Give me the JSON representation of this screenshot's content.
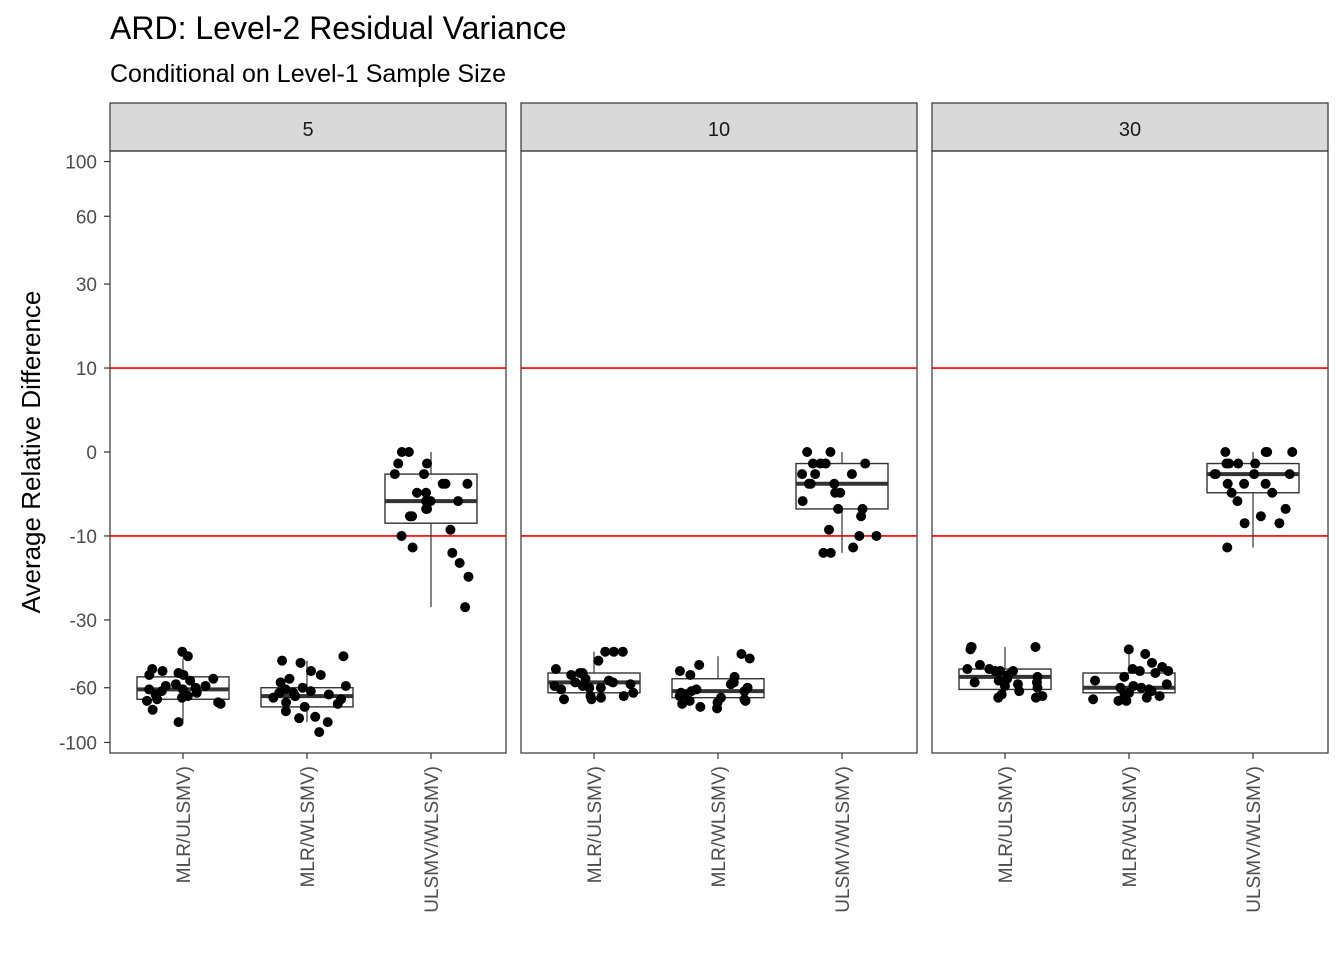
{
  "chart_data": {
    "type": "box",
    "title": "ARD: Level-2 Residual Variance",
    "subtitle": "Conditional on Level-1 Sample Size",
    "ylabel": "Average Relative Difference",
    "xlabel": "",
    "ylim": [
      -110,
      110
    ],
    "yticks": [
      100,
      60,
      30,
      10,
      0,
      -10,
      -30,
      -60,
      -100
    ],
    "reference_lines": [
      10,
      -10
    ],
    "categories": [
      "MLR/ULSMV)",
      "MLR/WLSMV)",
      "ULSMV/WLSMV)"
    ],
    "grid": false,
    "colors": {
      "reference": "#ee0000",
      "strip": "#d9d9d9",
      "points": "#000000"
    },
    "panels": [
      {
        "facet": "5",
        "boxes": [
          {
            "category": "MLR/ULSMV)",
            "q1": -67,
            "median": -61,
            "q3": -54,
            "whisker_low": -82,
            "whisker_high": -45,
            "points": [
              -42,
              -44,
              -50,
              -51,
              -52,
              -53,
              -53,
              -55,
              -56,
              -58,
              -59,
              -59,
              -60,
              -61,
              -61,
              -62,
              -63,
              -64,
              -65,
              -66,
              -67,
              -68,
              -69,
              -70,
              -74,
              -83
            ]
          },
          {
            "category": "MLR/WLSMV)",
            "q1": -72,
            "median": -65,
            "q3": -60,
            "whisker_low": -83,
            "whisker_high": -46,
            "points": [
              -44,
              -46,
              -47,
              -51,
              -53,
              -55,
              -57,
              -59,
              -60,
              -61,
              -62,
              -63,
              -63,
              -64,
              -65,
              -65,
              -66,
              -67,
              -69,
              -70,
              -72,
              -75,
              -79,
              -80,
              -83,
              -91
            ]
          },
          {
            "category": "ULSMV/WLSMV)",
            "q1": -8,
            "median": -5,
            "q3": -2,
            "whisker_low": -26,
            "whisker_high": 0,
            "points": [
              0,
              0,
              -1,
              -1,
              -2,
              -2,
              -3,
              -3,
              -3,
              -4,
              -4,
              -5,
              -5,
              -5,
              -6,
              -6,
              -7,
              -7,
              -9,
              -10,
              -12,
              -13,
              -15,
              -18,
              -26
            ]
          }
        ]
      },
      {
        "facet": "10",
        "boxes": [
          {
            "category": "MLR/ULSMV)",
            "q1": -63,
            "median": -57,
            "q3": -52,
            "whisker_low": -67,
            "whisker_high": -42,
            "points": [
              -42,
              -42,
              -42,
              -46,
              -50,
              -52,
              -52,
              -53,
              -55,
              -56,
              -57,
              -57,
              -58,
              -59,
              -59,
              -60,
              -60,
              -61,
              -63,
              -65,
              -65,
              -66,
              -67,
              -67
            ]
          },
          {
            "category": "MLR/WLSMV)",
            "q1": -66,
            "median": -62,
            "q3": -55,
            "whisker_low": -73,
            "whisker_high": -44,
            "points": [
              -43,
              -45,
              -48,
              -51,
              -53,
              -54,
              -57,
              -58,
              -60,
              -61,
              -62,
              -62,
              -63,
              -64,
              -65,
              -66,
              -67,
              -68,
              -68,
              -69,
              -70,
              -72,
              -73
            ]
          },
          {
            "category": "ULSMV/WLSMV)",
            "q1": -6,
            "median": -3,
            "q3": -1,
            "whisker_low": -13,
            "whisker_high": 0,
            "points": [
              0,
              0,
              -1,
              -1,
              -1,
              -1,
              -2,
              -2,
              -2,
              -3,
              -3,
              -3,
              -4,
              -4,
              -5,
              -6,
              -6,
              -7,
              -9,
              -10,
              -10,
              -12,
              -13,
              -13
            ]
          }
        ]
      },
      {
        "facet": "30",
        "boxes": [
          {
            "category": "MLR/ULSMV)",
            "q1": -61,
            "median": -54,
            "q3": -50,
            "whisker_low": -66,
            "whisker_high": -40,
            "points": [
              -40,
              -40,
              -40,
              -41,
              -48,
              -50,
              -50,
              -51,
              -51,
              -51,
              -53,
              -54,
              -55,
              -56,
              -57,
              -57,
              -58,
              -59,
              -60,
              -62,
              -64,
              -65,
              -66,
              -66
            ]
          },
          {
            "category": "MLR/WLSMV)",
            "q1": -63,
            "median": -60,
            "q3": -52,
            "whisker_low": -68,
            "whisker_high": -41,
            "points": [
              -41,
              -43,
              -47,
              -49,
              -50,
              -51,
              -51,
              -52,
              -54,
              -56,
              -58,
              -59,
              -60,
              -60,
              -61,
              -62,
              -63,
              -64,
              -65,
              -66,
              -67,
              -68,
              -68
            ]
          },
          {
            "category": "ULSMV/WLSMV)",
            "q1": -4,
            "median": -2,
            "q3": -1,
            "whisker_low": -12,
            "whisker_high": 0,
            "points": [
              0,
              0,
              0,
              0,
              -1,
              -1,
              -1,
              -1,
              -2,
              -2,
              -2,
              -2,
              -3,
              -3,
              -3,
              -4,
              -4,
              -5,
              -6,
              -7,
              -8,
              -8,
              -12
            ]
          }
        ]
      }
    ]
  }
}
